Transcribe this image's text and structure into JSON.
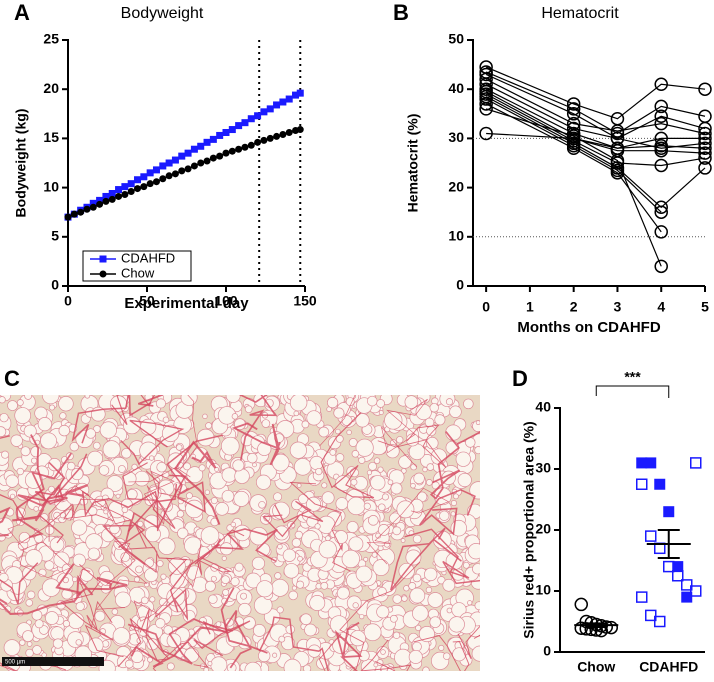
{
  "chart_data": [
    {
      "type": "line",
      "panel": "A",
      "title": "Bodyweight",
      "xlabel": "Experimental day",
      "ylabel": "Bodyweight (kg)",
      "x": [
        0,
        4,
        8,
        12,
        16,
        20,
        24,
        28,
        32,
        36,
        40,
        44,
        48,
        52,
        56,
        60,
        64,
        68,
        72,
        76,
        80,
        84,
        88,
        92,
        96,
        100,
        104,
        108,
        112,
        116,
        120,
        124,
        128,
        132,
        136,
        140,
        144,
        147
      ],
      "series": [
        {
          "name": "CDAHFD",
          "color": "#1a1aff",
          "marker": "square",
          "values": [
            7.0,
            7.3,
            7.7,
            8.0,
            8.4,
            8.7,
            9.1,
            9.4,
            9.8,
            10.1,
            10.4,
            10.8,
            11.1,
            11.5,
            11.8,
            12.2,
            12.5,
            12.8,
            13.2,
            13.5,
            13.9,
            14.2,
            14.6,
            14.9,
            15.3,
            15.6,
            15.9,
            16.3,
            16.6,
            17.0,
            17.3,
            17.7,
            18.0,
            18.4,
            18.7,
            19.0,
            19.4,
            19.6
          ]
        },
        {
          "name": "Chow",
          "color": "#000000",
          "marker": "circle",
          "values": [
            7.0,
            7.3,
            7.5,
            7.8,
            8.0,
            8.3,
            8.6,
            8.8,
            9.1,
            9.3,
            9.6,
            9.9,
            10.1,
            10.4,
            10.6,
            10.9,
            11.2,
            11.4,
            11.7,
            11.9,
            12.2,
            12.5,
            12.7,
            13.0,
            13.2,
            13.5,
            13.7,
            13.9,
            14.1,
            14.3,
            14.6,
            14.8,
            15.0,
            15.2,
            15.4,
            15.6,
            15.8,
            15.9
          ]
        }
      ],
      "vlines": [
        121,
        147
      ],
      "xlim": [
        0,
        150
      ],
      "ylim": [
        0,
        25
      ],
      "xticks": [
        0,
        50,
        100,
        150
      ],
      "yticks": [
        0,
        5,
        10,
        15,
        20,
        25
      ],
      "legend": "bottom-left"
    },
    {
      "type": "line",
      "panel": "B",
      "title": "Hematocrit",
      "xlabel": "Months on CDAHFD",
      "ylabel": "Hematocrit (%)",
      "x": [
        0,
        2,
        3,
        4,
        5
      ],
      "series": [
        {
          "color": "#000000",
          "marker": "circle-open",
          "values": [
            44.5,
            37,
            34,
            41,
            40
          ]
        },
        {
          "color": "#000000",
          "marker": "circle-open",
          "values": [
            43.5,
            36,
            31,
            36.5,
            34.5
          ]
        },
        {
          "color": "#000000",
          "marker": "circle-open",
          "values": [
            43,
            35,
            30,
            34.5,
            32
          ]
        },
        {
          "color": "#000000",
          "marker": "circle-open",
          "values": [
            42,
            33,
            31.5,
            33,
            31
          ]
        },
        {
          "color": "#000000",
          "marker": "circle-open",
          "values": [
            41,
            32,
            30,
            28,
            29
          ]
        },
        {
          "color": "#000000",
          "marker": "circle-open",
          "values": [
            40,
            31,
            28,
            28.5,
            28
          ]
        },
        {
          "color": "#000000",
          "marker": "circle-open",
          "values": [
            39.5,
            30,
            27.5,
            27.5,
            27
          ]
        },
        {
          "color": "#000000",
          "marker": "circle-open",
          "values": [
            39,
            29.5,
            25,
            24.5,
            26
          ]
        },
        {
          "color": "#000000",
          "marker": "circle-open",
          "values": [
            38.5,
            29,
            24,
            16,
            24
          ]
        },
        {
          "color": "#000000",
          "marker": "circle-open",
          "values": [
            38,
            28.5,
            23.5,
            15,
            null
          ]
        },
        {
          "color": "#000000",
          "marker": "circle-open",
          "values": [
            37,
            28,
            23,
            11,
            null
          ]
        },
        {
          "color": "#000000",
          "marker": "circle-open",
          "values": [
            36,
            30.5,
            25.5,
            4,
            null
          ]
        },
        {
          "color": "#000000",
          "marker": "circle-open",
          "values": [
            31,
            30,
            28,
            30,
            30
          ]
        }
      ],
      "hlines": [
        30,
        10
      ],
      "xlim": [
        -0.3,
        5
      ],
      "ylim": [
        0,
        50
      ],
      "xticks": [
        0,
        1,
        2,
        3,
        4,
        5
      ],
      "yticks": [
        0,
        10,
        20,
        30,
        40,
        50
      ]
    },
    {
      "type": "strip",
      "panel": "D",
      "ylabel": "Sirius red+ proportional area (%)",
      "categories": [
        "Chow",
        "CDAHFD"
      ],
      "groups": [
        {
          "sets": [
            {
              "color": "#000000",
              "marker": "circle-open",
              "values": [
                7.8,
                5,
                4.8,
                4.5,
                4.3,
                4.1,
                4,
                3.9,
                3.8,
                3.7,
                3.6,
                3.5
              ]
            }
          ],
          "mean": 4.4,
          "sem": 0.3
        },
        {
          "sets": [
            {
              "color": "#1a1aff",
              "marker": "square-filled",
              "values": [
                31,
                31,
                27.5,
                23,
                14,
                9
              ]
            },
            {
              "color": "#1a1aff",
              "marker": "square-open",
              "values": [
                31,
                27.5,
                19,
                17,
                14,
                12.5,
                11,
                10,
                9,
                6,
                5
              ]
            }
          ],
          "mean": 17.7,
          "sem": 2.3
        }
      ],
      "annotation": "***",
      "ylim": [
        0,
        40
      ],
      "yticks": [
        0,
        10,
        20,
        30,
        40
      ]
    }
  ],
  "panel_c": {
    "label": "C",
    "scale_bar": "500 µm"
  }
}
